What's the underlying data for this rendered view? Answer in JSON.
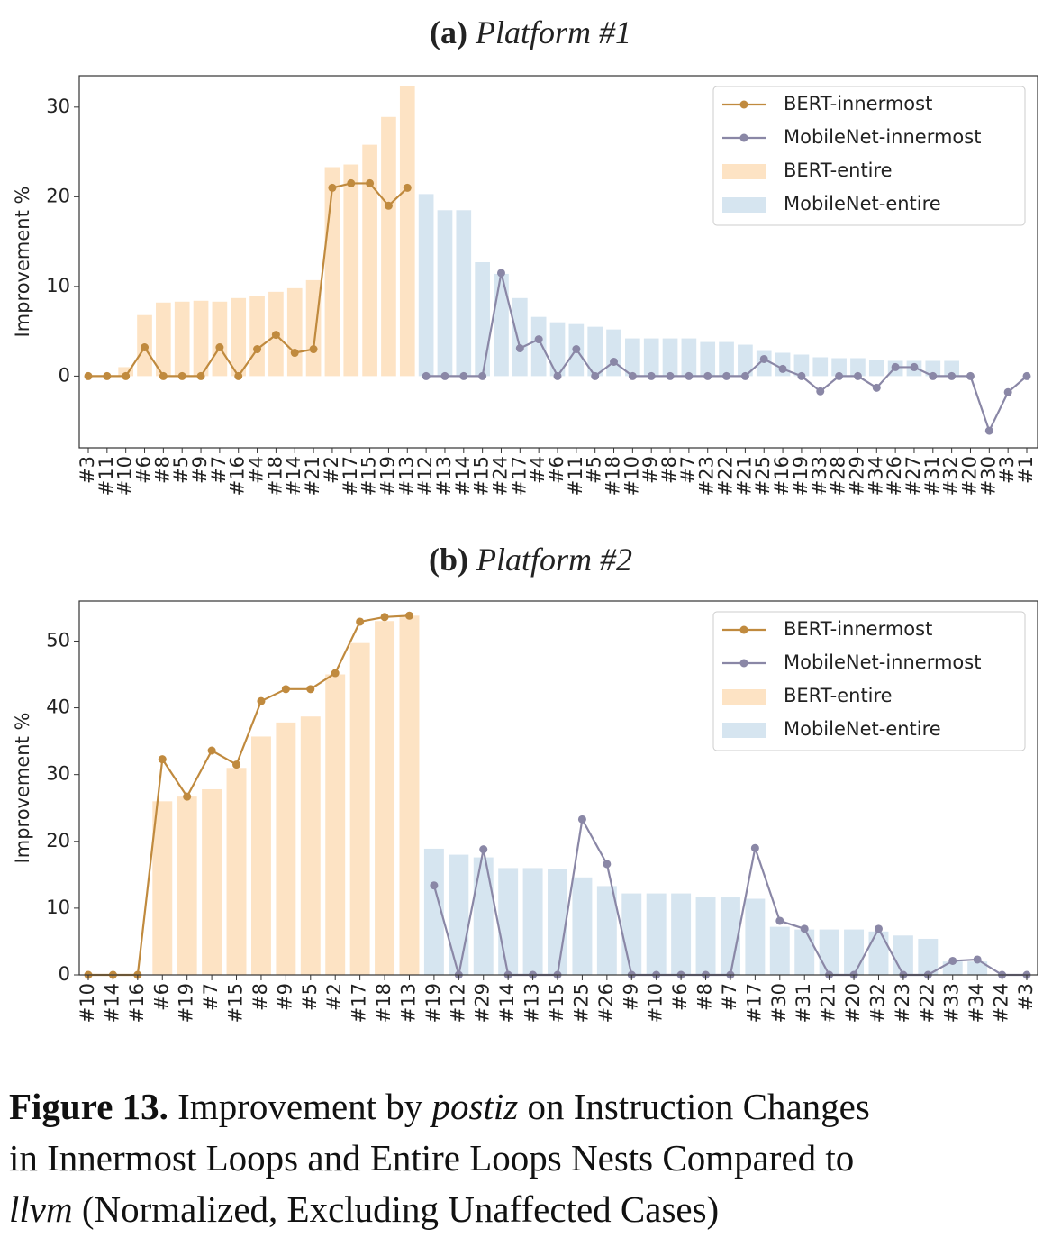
{
  "chart_data": [
    {
      "type": "bar_line",
      "title_label": "(a)",
      "title": "Platform #1",
      "ylabel": "Improvement %",
      "categories": [
        "#3",
        "#11",
        "#10",
        "#6",
        "#8",
        "#5",
        "#9",
        "#7",
        "#16",
        "#4",
        "#18",
        "#14",
        "#21",
        "#2",
        "#17",
        "#15",
        "#19",
        "#13",
        "#12",
        "#13",
        "#14",
        "#15",
        "#24",
        "#17",
        "#4",
        "#6",
        "#11",
        "#5",
        "#18",
        "#10",
        "#9",
        "#8",
        "#7",
        "#23",
        "#22",
        "#21",
        "#25",
        "#16",
        "#19",
        "#33",
        "#28",
        "#29",
        "#34",
        "#26",
        "#27",
        "#31",
        "#32",
        "#20",
        "#30",
        "#3",
        "#1"
      ],
      "ylim": [
        -8,
        33.5
      ],
      "yticks": [
        0,
        10,
        20,
        30
      ],
      "legend": "upper right",
      "series": [
        {
          "name": "BERT-innermost",
          "kind": "line",
          "color": "#c08a3e",
          "values": [
            0,
            0,
            0,
            3.2,
            0,
            0,
            0,
            3.2,
            0,
            3,
            4.6,
            2.6,
            3,
            21,
            21.5,
            21.5,
            19,
            21,
            null,
            null,
            null,
            null,
            null,
            null,
            null,
            null,
            null,
            null,
            null,
            null,
            null,
            null,
            null,
            null,
            null,
            null,
            null,
            null,
            null,
            null,
            null,
            null,
            null,
            null,
            null,
            null,
            null,
            null,
            null,
            null,
            null
          ]
        },
        {
          "name": "MobileNet-innermost",
          "kind": "line",
          "color": "#8a87a6",
          "values": [
            null,
            null,
            null,
            null,
            null,
            null,
            null,
            null,
            null,
            null,
            null,
            null,
            null,
            null,
            null,
            null,
            null,
            null,
            0,
            0,
            0,
            0,
            11.5,
            3.1,
            4.1,
            0,
            3,
            0,
            1.6,
            0,
            0,
            0,
            0,
            0,
            0,
            0,
            1.9,
            0.8,
            0,
            -1.7,
            0,
            0,
            -1.3,
            1,
            1,
            0,
            0,
            0,
            -6.1,
            -1.8,
            0
          ]
        },
        {
          "name": "BERT-entire",
          "kind": "bar",
          "color": "#fde3c4",
          "values": [
            0,
            0,
            1,
            6.8,
            8.2,
            8.3,
            8.4,
            8.3,
            8.7,
            8.9,
            9.4,
            9.8,
            10.7,
            23.3,
            23.6,
            25.8,
            28.9,
            32.3,
            null,
            null,
            null,
            null,
            null,
            null,
            null,
            null,
            null,
            null,
            null,
            null,
            null,
            null,
            null,
            null,
            null,
            null,
            null,
            null,
            null,
            null,
            null,
            null,
            null,
            null,
            null,
            null,
            null,
            null,
            null,
            null,
            null
          ]
        },
        {
          "name": "MobileNet-entire",
          "kind": "bar",
          "color": "#d6e5f0",
          "values": [
            null,
            null,
            null,
            null,
            null,
            null,
            null,
            null,
            null,
            null,
            null,
            null,
            null,
            null,
            null,
            null,
            null,
            null,
            20.3,
            18.5,
            18.5,
            12.7,
            11.4,
            8.7,
            6.6,
            6.0,
            5.8,
            5.5,
            5.2,
            4.2,
            4.2,
            4.2,
            4.2,
            3.8,
            3.8,
            3.5,
            2.8,
            2.6,
            2.4,
            2.1,
            2.0,
            2.0,
            1.8,
            1.7,
            1.7,
            1.7,
            1.7,
            0,
            0,
            0,
            0
          ]
        }
      ]
    },
    {
      "type": "bar_line",
      "title_label": "(b)",
      "title": "Platform #2",
      "ylabel": "Improvement %",
      "categories": [
        "#10",
        "#14",
        "#16",
        "#6",
        "#19",
        "#7",
        "#15",
        "#8",
        "#9",
        "#5",
        "#2",
        "#17",
        "#18",
        "#13",
        "#19",
        "#12",
        "#29",
        "#14",
        "#13",
        "#15",
        "#25",
        "#26",
        "#9",
        "#10",
        "#6",
        "#8",
        "#7",
        "#17",
        "#30",
        "#31",
        "#21",
        "#20",
        "#32",
        "#23",
        "#22",
        "#33",
        "#34",
        "#24",
        "#3"
      ],
      "ylim": [
        0,
        56
      ],
      "yticks": [
        0,
        10,
        20,
        30,
        40,
        50
      ],
      "legend": "upper right",
      "series": [
        {
          "name": "BERT-innermost",
          "kind": "line",
          "color": "#c08a3e",
          "values": [
            0,
            0,
            0,
            32.3,
            26.7,
            33.6,
            31.5,
            41,
            42.8,
            42.8,
            45.2,
            52.9,
            53.6,
            53.8,
            null,
            null,
            null,
            null,
            null,
            null,
            null,
            null,
            null,
            null,
            null,
            null,
            null,
            null,
            null,
            null,
            null,
            null,
            null,
            null,
            null,
            null,
            null,
            null,
            null
          ]
        },
        {
          "name": "MobileNet-innermost",
          "kind": "line",
          "color": "#8a87a6",
          "values": [
            null,
            null,
            null,
            null,
            null,
            null,
            null,
            null,
            null,
            null,
            null,
            null,
            null,
            null,
            13.4,
            0,
            18.8,
            0,
            0,
            0,
            23.3,
            16.6,
            0,
            0,
            0,
            0,
            0,
            19,
            8.1,
            6.9,
            0,
            0,
            6.9,
            0,
            0,
            2.1,
            2.3,
            0,
            0
          ]
        },
        {
          "name": "BERT-entire",
          "kind": "bar",
          "color": "#fde3c4",
          "values": [
            0,
            0,
            0,
            26,
            26.7,
            27.8,
            31,
            35.7,
            37.8,
            38.7,
            45,
            49.7,
            53,
            53.8,
            null,
            null,
            null,
            null,
            null,
            null,
            null,
            null,
            null,
            null,
            null,
            null,
            null,
            null,
            null,
            null,
            null,
            null,
            null,
            null,
            null,
            null,
            null,
            null,
            null
          ]
        },
        {
          "name": "MobileNet-entire",
          "kind": "bar",
          "color": "#d6e5f0",
          "values": [
            null,
            null,
            null,
            null,
            null,
            null,
            null,
            null,
            null,
            null,
            null,
            null,
            null,
            null,
            18.9,
            18,
            17.6,
            16,
            16,
            15.9,
            14.6,
            13.3,
            12.2,
            12.2,
            12.2,
            11.6,
            11.6,
            11.4,
            7.2,
            6.8,
            6.8,
            6.8,
            6.5,
            5.9,
            5.4,
            2,
            2,
            0,
            0
          ]
        }
      ]
    }
  ],
  "caption": [
    "Figure 13.",
    " Improvement by ",
    "postiz",
    " on Instruction Changes",
    "in Innermost Loops and Entire Loops Nests Compared to",
    "llvm",
    " (Normalized, Excluding Unaffected Cases)"
  ]
}
